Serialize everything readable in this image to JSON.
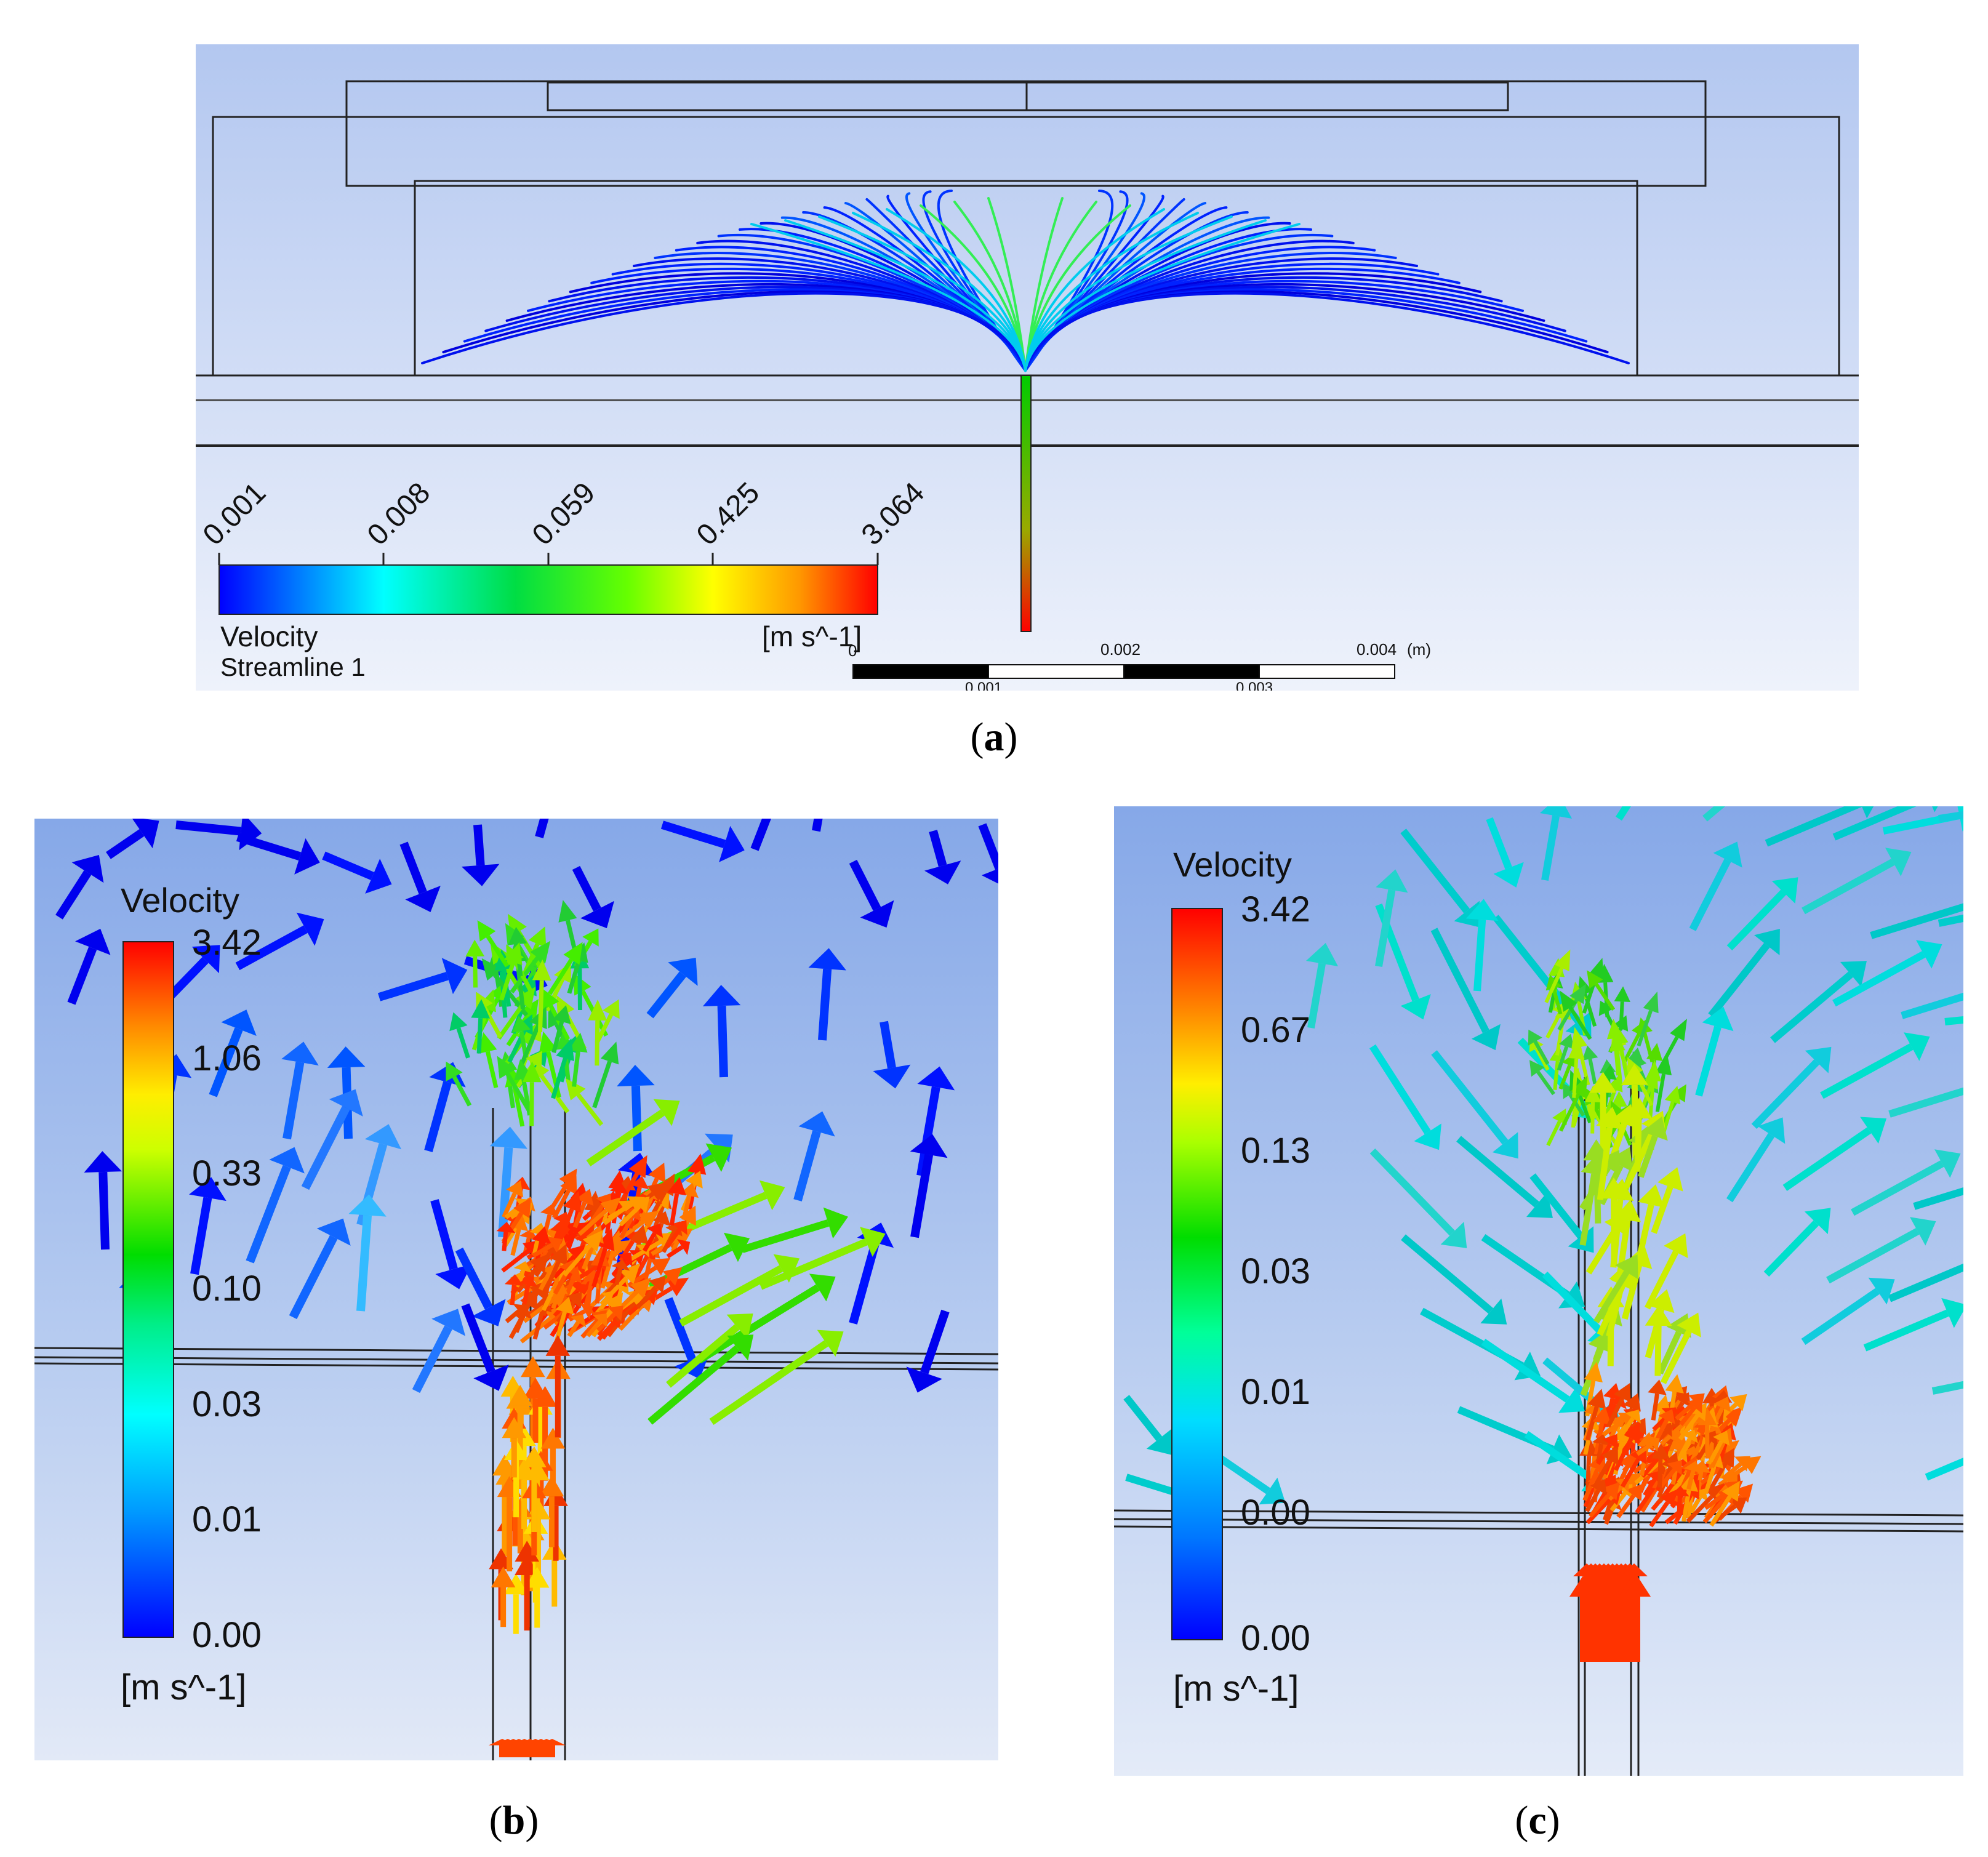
{
  "panel_a": {
    "colorbar_ticks": [
      "0.001",
      "0.008",
      "0.059",
      "0.425",
      "3.064"
    ],
    "colorbar_unit": "[m s^-1]",
    "colorbar_title": "Velocity",
    "colorbar_subtitle": "Streamline 1",
    "scale_top_labels": [
      "0",
      "0.002",
      "0.004"
    ],
    "scale_bottom_labels": [
      "0.001",
      "0.003"
    ],
    "scale_unit": "(m)",
    "colormap": [
      "#0000ff",
      "#00aaff",
      "#00ffff",
      "#00ff55",
      "#44ff00",
      "#ffff00",
      "#ff9900",
      "#ff0000"
    ]
  },
  "panel_b": {
    "legend_title": "Velocity",
    "legend_ticks": [
      "3.42",
      "1.06",
      "0.33",
      "0.10",
      "0.03",
      "0.01",
      "0.00"
    ],
    "legend_unit": "[m s^-1]"
  },
  "panel_c": {
    "legend_title": "Velocity",
    "legend_ticks": [
      "3.42",
      "0.67",
      "0.13",
      "0.03",
      "0.01",
      "0.00",
      "0.00"
    ],
    "legend_unit": "[m s^-1]"
  },
  "captions": {
    "a": "a",
    "b": "b",
    "c": "c"
  },
  "colors": {
    "bg_top": "#8fb0ea",
    "bg_bottom": "#e6ecf8",
    "outline": "#222222"
  }
}
